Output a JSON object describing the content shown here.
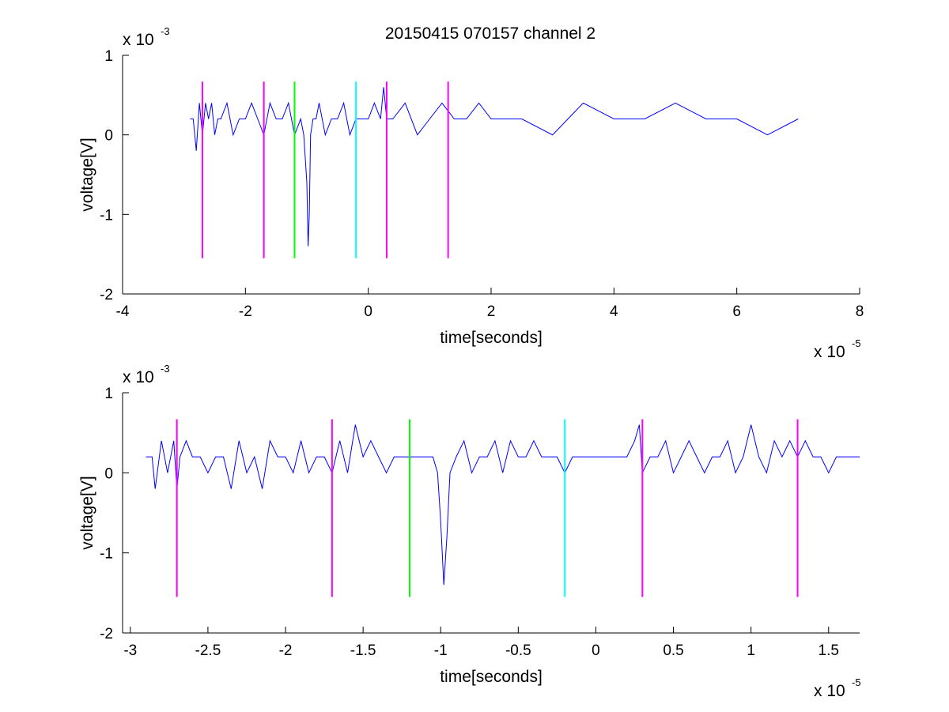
{
  "figure": {
    "title": "20150415 070157 channel 2"
  },
  "colors": {
    "signal": "#0000ff",
    "magenta": "#ff00ff",
    "green": "#00ff00",
    "cyan": "#00ffff",
    "axis": "#000000",
    "background": "#ffffff"
  },
  "chart_data": [
    {
      "type": "line",
      "title": "20150415 070157 channel 2",
      "xlabel": "time[seconds]",
      "ylabel": "voltage[V]",
      "x_exponent_label": "x 10",
      "x_exponent": "-5",
      "y_exponent_label": "x 10",
      "y_exponent": "-3",
      "xlim": [
        -4,
        8
      ],
      "ylim": [
        -2,
        1
      ],
      "x_ticks": [
        -4,
        -2,
        0,
        2,
        4,
        6,
        8
      ],
      "x_tick_labels": [
        "-4",
        "-2",
        "0",
        "2",
        "4",
        "6",
        "8"
      ],
      "y_ticks": [
        -2,
        -1,
        0,
        1
      ],
      "y_tick_labels": [
        "-2",
        "-1",
        "0",
        "1"
      ],
      "grid": false,
      "series": [
        {
          "color": "#0000ff",
          "x": [
            -2.9,
            -2.85,
            -2.8,
            -2.75,
            -2.7,
            -2.65,
            -2.6,
            -2.55,
            -2.5,
            -2.45,
            -2.4,
            -2.3,
            -2.2,
            -2.1,
            -2.0,
            -1.9,
            -1.8,
            -1.7,
            -1.6,
            -1.5,
            -1.4,
            -1.3,
            -1.2,
            -1.1,
            -1.05,
            -1.0,
            -0.98,
            -0.96,
            -0.94,
            -0.9,
            -0.85,
            -0.8,
            -0.7,
            -0.6,
            -0.5,
            -0.4,
            -0.3,
            -0.2,
            -0.1,
            0.0,
            0.1,
            0.2,
            0.25,
            0.3,
            0.4,
            0.6,
            0.8,
            1.0,
            1.2,
            1.4,
            1.6,
            1.8,
            2.0,
            2.5,
            3.0,
            3.5,
            4.0,
            4.5,
            5.0,
            5.5,
            6.0,
            6.5,
            7.0
          ],
          "y": [
            0.2,
            0.2,
            -0.2,
            0.4,
            0.0,
            0.4,
            0.2,
            0.4,
            0.0,
            0.2,
            0.2,
            0.4,
            0.0,
            0.2,
            0.2,
            0.4,
            0.2,
            0.0,
            0.4,
            0.2,
            0.2,
            0.4,
            0.0,
            0.2,
            0.0,
            -0.6,
            -1.4,
            -1.0,
            0.0,
            0.2,
            0.2,
            0.4,
            0.0,
            0.2,
            0.2,
            0.4,
            0.0,
            0.2,
            0.2,
            0.2,
            0.4,
            0.2,
            0.6,
            0.2,
            0.2,
            0.4,
            0.0,
            0.2,
            0.4,
            0.2,
            0.2,
            0.4,
            0.2,
            0.2,
            0.0,
            0.4,
            0.2,
            0.2,
            0.4,
            0.2,
            0.2,
            0.0,
            0.2
          ]
        }
      ],
      "vlines": [
        {
          "x": -2.7,
          "color": "#ff00ff",
          "y0": -1.55,
          "y1": 0.67
        },
        {
          "x": -1.7,
          "color": "#ff00ff",
          "y0": -1.55,
          "y1": 0.67
        },
        {
          "x": -1.2,
          "color": "#00ff00",
          "y0": -1.55,
          "y1": 0.67
        },
        {
          "x": -0.2,
          "color": "#00ffff",
          "y0": -1.55,
          "y1": 0.67
        },
        {
          "x": 0.3,
          "color": "#ff00ff",
          "y0": -1.55,
          "y1": 0.67
        },
        {
          "x": 1.3,
          "color": "#ff00ff",
          "y0": -1.55,
          "y1": 0.67
        }
      ]
    },
    {
      "type": "line",
      "xlabel": "time[seconds]",
      "ylabel": "voltage[V]",
      "x_exponent_label": "x 10",
      "x_exponent": "-5",
      "y_exponent_label": "x 10",
      "y_exponent": "-3",
      "xlim": [
        -3.05,
        1.7
      ],
      "ylim": [
        -2,
        1
      ],
      "x_ticks": [
        -3,
        -2.5,
        -2,
        -1.5,
        -1,
        -0.5,
        0,
        0.5,
        1,
        1.5
      ],
      "x_tick_labels": [
        "-3",
        "-2.5",
        "-2",
        "-1.5",
        "-1",
        "-0.5",
        "0",
        "0.5",
        "1",
        "1.5"
      ],
      "y_ticks": [
        -2,
        -1,
        0,
        1
      ],
      "y_tick_labels": [
        "-2",
        "-1",
        "0",
        "1"
      ],
      "grid": false,
      "series": [
        {
          "color": "#0000ff",
          "x": [
            -2.9,
            -2.86,
            -2.84,
            -2.8,
            -2.76,
            -2.72,
            -2.7,
            -2.68,
            -2.64,
            -2.6,
            -2.55,
            -2.5,
            -2.45,
            -2.4,
            -2.35,
            -2.3,
            -2.25,
            -2.2,
            -2.15,
            -2.1,
            -2.05,
            -2.0,
            -1.95,
            -1.9,
            -1.85,
            -1.8,
            -1.75,
            -1.7,
            -1.65,
            -1.6,
            -1.55,
            -1.5,
            -1.45,
            -1.4,
            -1.35,
            -1.3,
            -1.25,
            -1.2,
            -1.15,
            -1.1,
            -1.05,
            -1.02,
            -1.0,
            -0.98,
            -0.96,
            -0.94,
            -0.9,
            -0.85,
            -0.8,
            -0.75,
            -0.7,
            -0.65,
            -0.6,
            -0.55,
            -0.5,
            -0.45,
            -0.4,
            -0.35,
            -0.3,
            -0.25,
            -0.2,
            -0.15,
            -0.1,
            -0.05,
            0.0,
            0.05,
            0.1,
            0.15,
            0.2,
            0.25,
            0.28,
            0.3,
            0.35,
            0.4,
            0.45,
            0.5,
            0.55,
            0.6,
            0.65,
            0.7,
            0.75,
            0.8,
            0.85,
            0.9,
            0.95,
            1.0,
            1.05,
            1.1,
            1.15,
            1.2,
            1.25,
            1.3,
            1.35,
            1.4,
            1.45,
            1.5,
            1.55,
            1.6,
            1.65,
            1.7
          ],
          "y": [
            0.2,
            0.2,
            -0.2,
            0.4,
            0.0,
            0.4,
            -0.2,
            0.2,
            0.4,
            0.2,
            0.2,
            0.0,
            0.2,
            0.2,
            -0.2,
            0.4,
            0.0,
            0.2,
            -0.2,
            0.4,
            0.2,
            0.2,
            0.0,
            0.4,
            0.0,
            0.2,
            0.2,
            0.0,
            0.4,
            0.0,
            0.6,
            0.2,
            0.4,
            0.2,
            0.0,
            0.2,
            0.2,
            0.2,
            0.2,
            0.2,
            0.2,
            0.0,
            -0.6,
            -1.4,
            -0.8,
            0.0,
            0.2,
            0.4,
            0.0,
            0.2,
            0.2,
            0.4,
            0.0,
            0.4,
            0.2,
            0.2,
            0.4,
            0.2,
            0.2,
            0.2,
            0.0,
            0.2,
            0.2,
            0.2,
            0.2,
            0.2,
            0.2,
            0.2,
            0.2,
            0.4,
            0.6,
            0.0,
            0.2,
            0.2,
            0.4,
            0.0,
            0.2,
            0.4,
            0.2,
            0.0,
            0.2,
            0.2,
            0.4,
            0.0,
            0.2,
            0.6,
            0.2,
            0.0,
            0.4,
            0.2,
            0.4,
            0.2,
            0.4,
            0.2,
            0.2,
            0.0,
            0.2,
            0.2,
            0.2,
            0.2
          ]
        }
      ],
      "vlines": [
        {
          "x": -2.7,
          "color": "#ff00ff",
          "y0": -1.55,
          "y1": 0.67
        },
        {
          "x": -1.7,
          "color": "#ff00ff",
          "y0": -1.55,
          "y1": 0.67
        },
        {
          "x": -1.2,
          "color": "#00ff00",
          "y0": -1.55,
          "y1": 0.67
        },
        {
          "x": -0.2,
          "color": "#00ffff",
          "y0": -1.55,
          "y1": 0.67
        },
        {
          "x": 0.3,
          "color": "#ff00ff",
          "y0": -1.55,
          "y1": 0.67
        },
        {
          "x": 1.3,
          "color": "#ff00ff",
          "y0": -1.55,
          "y1": 0.67
        }
      ]
    }
  ]
}
